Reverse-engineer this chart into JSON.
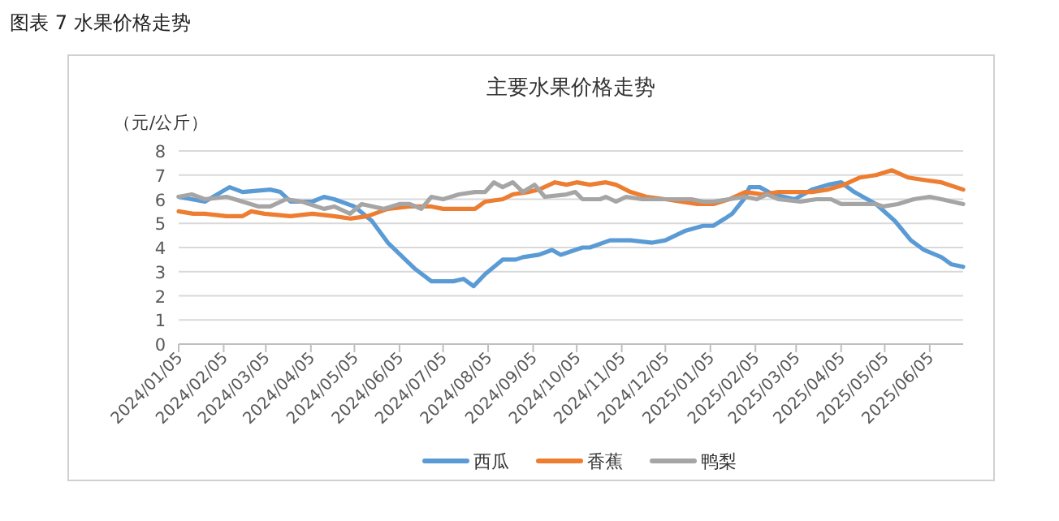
{
  "chart_data": {
    "type": "line",
    "title": "主要水果价格走势",
    "ylabel": "（元/公斤）",
    "annotations": [
      "图表 7 水果价格走势"
    ],
    "xlim": [
      "2024-01-05",
      "2025-06-28"
    ],
    "xticks": [
      {
        "value": "2024-01-05",
        "label": "2024/01/05"
      },
      {
        "value": "2024-02-05",
        "label": "2024/02/05"
      },
      {
        "value": "2024-03-05",
        "label": "2024/03/05"
      },
      {
        "value": "2024-04-05",
        "label": "2024/04/05"
      },
      {
        "value": "2024-05-05",
        "label": "2024/05/05"
      },
      {
        "value": "2024-06-05",
        "label": "2024/06/05"
      },
      {
        "value": "2024-07-05",
        "label": "2024/07/05"
      },
      {
        "value": "2024-08-05",
        "label": "2024/08/05"
      },
      {
        "value": "2024-09-05",
        "label": "2024/09/05"
      },
      {
        "value": "2024-10-05",
        "label": "2024/10/05"
      },
      {
        "value": "2024-11-05",
        "label": "2024/11/05"
      },
      {
        "value": "2024-12-05",
        "label": "2024/12/05"
      },
      {
        "value": "2025-01-05",
        "label": "2025/01/05"
      },
      {
        "value": "2025-02-05",
        "label": "2025/02/05"
      },
      {
        "value": "2025-03-05",
        "label": "2025/03/05"
      },
      {
        "value": "2025-04-05",
        "label": "2025/04/05"
      },
      {
        "value": "2025-05-05",
        "label": "2025/05/05"
      },
      {
        "value": "2025-06-05",
        "label": "2025/06/05"
      }
    ],
    "ylim": [
      0,
      8
    ],
    "yticks": [
      0,
      1,
      2,
      3,
      4,
      5,
      6,
      7,
      8
    ],
    "grid": "y",
    "legend": "bottom",
    "marker": "none",
    "line_style": "solid",
    "series": [
      {
        "name": "西瓜",
        "color": "#5b9bd5",
        "x": [
          "2024-01-05",
          "2024-01-23",
          "2024-02-09",
          "2024-02-18",
          "2024-03-08",
          "2024-03-15",
          "2024-03-22",
          "2024-04-06",
          "2024-04-14",
          "2024-04-21",
          "2024-05-05",
          "2024-05-17",
          "2024-05-28",
          "2024-06-09",
          "2024-06-16",
          "2024-06-27",
          "2024-07-12",
          "2024-07-19",
          "2024-07-26",
          "2024-08-03",
          "2024-08-15",
          "2024-08-24",
          "2024-08-29",
          "2024-09-09",
          "2024-09-18",
          "2024-09-24",
          "2024-10-09",
          "2024-10-14",
          "2024-10-28",
          "2024-11-11",
          "2024-11-26",
          "2024-12-05",
          "2024-12-19",
          "2024-12-31",
          "2025-01-07",
          "2025-01-15",
          "2025-01-20",
          "2025-01-28",
          "2025-02-01",
          "2025-02-08",
          "2025-02-17",
          "2025-03-04",
          "2025-03-16",
          "2025-03-27",
          "2025-04-05",
          "2025-04-14",
          "2025-04-29",
          "2025-05-12",
          "2025-05-23",
          "2025-06-01",
          "2025-06-13",
          "2025-06-20",
          "2025-06-28"
        ],
        "values": [
          6.1,
          5.9,
          6.5,
          6.3,
          6.4,
          6.3,
          5.9,
          5.9,
          6.1,
          6.0,
          5.7,
          5.1,
          4.2,
          3.5,
          3.1,
          2.6,
          2.6,
          2.7,
          2.4,
          2.9,
          3.5,
          3.5,
          3.6,
          3.7,
          3.9,
          3.7,
          4.0,
          4.0,
          4.3,
          4.3,
          4.2,
          4.3,
          4.7,
          4.9,
          4.9,
          5.2,
          5.4,
          6.0,
          6.5,
          6.5,
          6.2,
          6.0,
          6.4,
          6.6,
          6.7,
          6.3,
          5.8,
          5.1,
          4.3,
          3.9,
          3.6,
          3.3,
          3.2
        ]
      },
      {
        "name": "香蕉",
        "color": "#ed7d31",
        "x": [
          "2024-01-05",
          "2024-01-15",
          "2024-01-23",
          "2024-02-07",
          "2024-02-18",
          "2024-02-24",
          "2024-03-04",
          "2024-03-22",
          "2024-04-06",
          "2024-04-21",
          "2024-05-02",
          "2024-05-14",
          "2024-05-28",
          "2024-06-12",
          "2024-06-27",
          "2024-07-05",
          "2024-07-27",
          "2024-08-03",
          "2024-08-15",
          "2024-08-22",
          "2024-09-02",
          "2024-09-09",
          "2024-09-20",
          "2024-09-28",
          "2024-10-05",
          "2024-10-14",
          "2024-10-25",
          "2024-11-01",
          "2024-11-11",
          "2024-11-22",
          "2024-12-05",
          "2024-12-16",
          "2024-12-27",
          "2025-01-07",
          "2025-01-18",
          "2025-01-29",
          "2025-02-10",
          "2025-02-21",
          "2025-03-04",
          "2025-03-16",
          "2025-03-27",
          "2025-04-07",
          "2025-04-18",
          "2025-04-29",
          "2025-05-10",
          "2025-05-21",
          "2025-06-01",
          "2025-06-13",
          "2025-06-28"
        ],
        "values": [
          5.5,
          5.4,
          5.4,
          5.3,
          5.3,
          5.5,
          5.4,
          5.3,
          5.4,
          5.3,
          5.2,
          5.3,
          5.6,
          5.7,
          5.7,
          5.6,
          5.6,
          5.9,
          6.0,
          6.2,
          6.3,
          6.4,
          6.7,
          6.6,
          6.7,
          6.6,
          6.7,
          6.6,
          6.3,
          6.1,
          6.0,
          5.9,
          5.8,
          5.8,
          6.0,
          6.3,
          6.2,
          6.3,
          6.3,
          6.3,
          6.4,
          6.6,
          6.9,
          7.0,
          7.2,
          6.9,
          6.8,
          6.7,
          6.4
        ]
      },
      {
        "name": "鸭梨",
        "color": "#a5a5a5",
        "x": [
          "2024-01-05",
          "2024-01-14",
          "2024-01-23",
          "2024-02-07",
          "2024-02-18",
          "2024-02-29",
          "2024-03-08",
          "2024-03-19",
          "2024-03-30",
          "2024-04-14",
          "2024-04-21",
          "2024-05-02",
          "2024-05-10",
          "2024-05-25",
          "2024-06-05",
          "2024-06-12",
          "2024-06-20",
          "2024-06-27",
          "2024-07-05",
          "2024-07-16",
          "2024-07-27",
          "2024-08-03",
          "2024-08-09",
          "2024-08-15",
          "2024-08-22",
          "2024-08-29",
          "2024-09-06",
          "2024-09-13",
          "2024-09-28",
          "2024-10-04",
          "2024-10-09",
          "2024-10-21",
          "2024-10-25",
          "2024-11-01",
          "2024-11-08",
          "2024-11-19",
          "2024-11-30",
          "2024-12-12",
          "2024-12-23",
          "2024-12-31",
          "2025-01-07",
          "2025-01-18",
          "2025-01-29",
          "2025-02-06",
          "2025-02-13",
          "2025-02-21",
          "2025-03-08",
          "2025-03-19",
          "2025-03-29",
          "2025-04-05",
          "2025-04-18",
          "2025-04-29",
          "2025-05-04",
          "2025-05-14",
          "2025-05-25",
          "2025-06-05",
          "2025-06-13",
          "2025-06-28"
        ],
        "values": [
          6.1,
          6.2,
          6.0,
          6.1,
          5.9,
          5.7,
          5.7,
          6.0,
          5.9,
          5.6,
          5.7,
          5.4,
          5.8,
          5.6,
          5.8,
          5.8,
          5.6,
          6.1,
          6.0,
          6.2,
          6.3,
          6.3,
          6.7,
          6.5,
          6.7,
          6.3,
          6.6,
          6.1,
          6.2,
          6.3,
          6.0,
          6.0,
          6.1,
          5.9,
          6.1,
          6.0,
          6.0,
          6.0,
          6.0,
          5.9,
          5.9,
          6.0,
          6.1,
          6.0,
          6.2,
          6.0,
          5.9,
          6.0,
          6.0,
          5.8,
          5.8,
          5.8,
          5.7,
          5.8,
          6.0,
          6.1,
          6.0,
          5.8
        ]
      }
    ]
  }
}
